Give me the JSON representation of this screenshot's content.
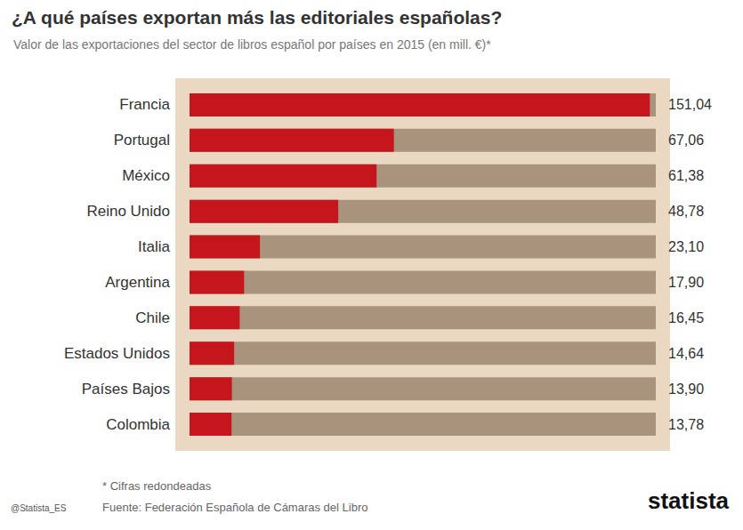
{
  "chart_data": {
    "type": "bar",
    "orientation": "horizontal",
    "title": "¿A qué países exportan más las editoriales españolas?",
    "subtitle": "Valor de las exportaciones del sector de libros español por países en 2015 (en mill. €)*",
    "categories": [
      "Francia",
      "Portugal",
      "México",
      "Reino Unido",
      "Italia",
      "Argentina",
      "Chile",
      "Estados Unidos",
      "Países Bajos",
      "Colombia"
    ],
    "values": [
      151.04,
      67.06,
      61.38,
      48.78,
      23.1,
      17.9,
      16.45,
      14.64,
      13.9,
      13.78
    ],
    "value_labels": [
      "151,04",
      "67,06",
      "61,38",
      "48,78",
      "23,10",
      "17,90",
      "16,45",
      "14,64",
      "13,90",
      "13,78"
    ],
    "data_labels": true,
    "color": "#c4161c",
    "xlim": [
      0,
      153
    ],
    "tick_labels": "y",
    "grid": false,
    "footnote": "* Cifras redondeadas",
    "source": "Fuente: Federación Española de Cámaras del Libro",
    "credit": "@Statista_ES",
    "brand": "statista"
  }
}
